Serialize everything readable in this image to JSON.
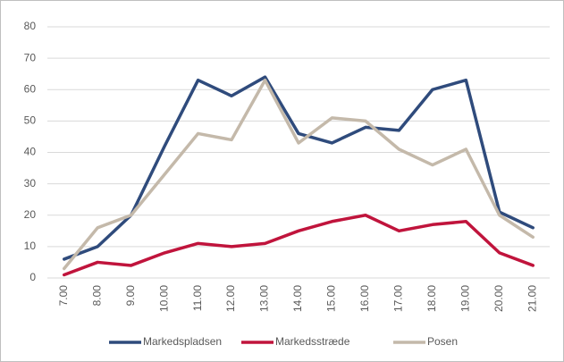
{
  "chart_data": {
    "type": "line",
    "categories": [
      "7.00",
      "8.00",
      "9.00",
      "10.00",
      "11.00",
      "12.00",
      "13.00",
      "14.00",
      "15.00",
      "16.00",
      "17.00",
      "18.00",
      "19.00",
      "20.00",
      "21.00"
    ],
    "series": [
      {
        "name": "Markedspladsen",
        "color": "#2f4b7c",
        "values": [
          6,
          10,
          20,
          42,
          63,
          58,
          64,
          46,
          43,
          48,
          47,
          60,
          63,
          21,
          16
        ]
      },
      {
        "name": "Markedsstræde",
        "color": "#c0143c",
        "values": [
          1,
          5,
          4,
          8,
          11,
          10,
          11,
          15,
          18,
          20,
          15,
          17,
          18,
          8,
          4
        ]
      },
      {
        "name": "Posen",
        "color": "#c4b9aa",
        "values": [
          3,
          16,
          20,
          33,
          46,
          44,
          63,
          43,
          51,
          50,
          41,
          36,
          41,
          20,
          13
        ]
      }
    ],
    "ylim": [
      0,
      80
    ],
    "yticks": [
      0,
      10,
      20,
      30,
      40,
      50,
      60,
      70,
      80
    ],
    "grid": true,
    "legend": "bottom"
  }
}
